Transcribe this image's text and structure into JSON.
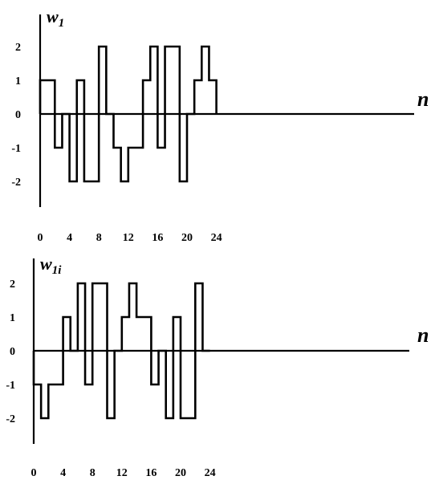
{
  "chart_data": [
    {
      "type": "line",
      "step": true,
      "ylabel_main": "w",
      "ylabel_sub": "1",
      "xlabel": "n",
      "x_ticks": [
        "0",
        "4",
        "8",
        "12",
        "16",
        "20",
        "24"
      ],
      "y_ticks": [
        "2",
        "1",
        "0",
        "-1",
        "-2"
      ],
      "xlim": [
        0,
        25
      ],
      "ylim": [
        -2,
        2
      ],
      "values": [
        1,
        1,
        -1,
        0,
        -2,
        1,
        -2,
        -2,
        2,
        0,
        -1,
        -2,
        -1,
        -1,
        1,
        2,
        -1,
        2,
        2,
        -2,
        0,
        1,
        2,
        1
      ]
    },
    {
      "type": "line",
      "step": true,
      "ylabel_main": "w",
      "ylabel_sub": "1i",
      "xlabel": "n",
      "x_ticks": [
        "0",
        "4",
        "8",
        "12",
        "16",
        "20",
        "24"
      ],
      "y_ticks": [
        "2",
        "1",
        "0",
        "-1",
        "-2"
      ],
      "xlim": [
        0,
        25
      ],
      "ylim": [
        -2,
        2
      ],
      "values": [
        -1,
        -2,
        -1,
        -1,
        1,
        0,
        2,
        -1,
        2,
        2,
        -2,
        0,
        1,
        2,
        1,
        1,
        -1,
        0,
        -2,
        1,
        -2,
        -2,
        2,
        0
      ]
    }
  ]
}
